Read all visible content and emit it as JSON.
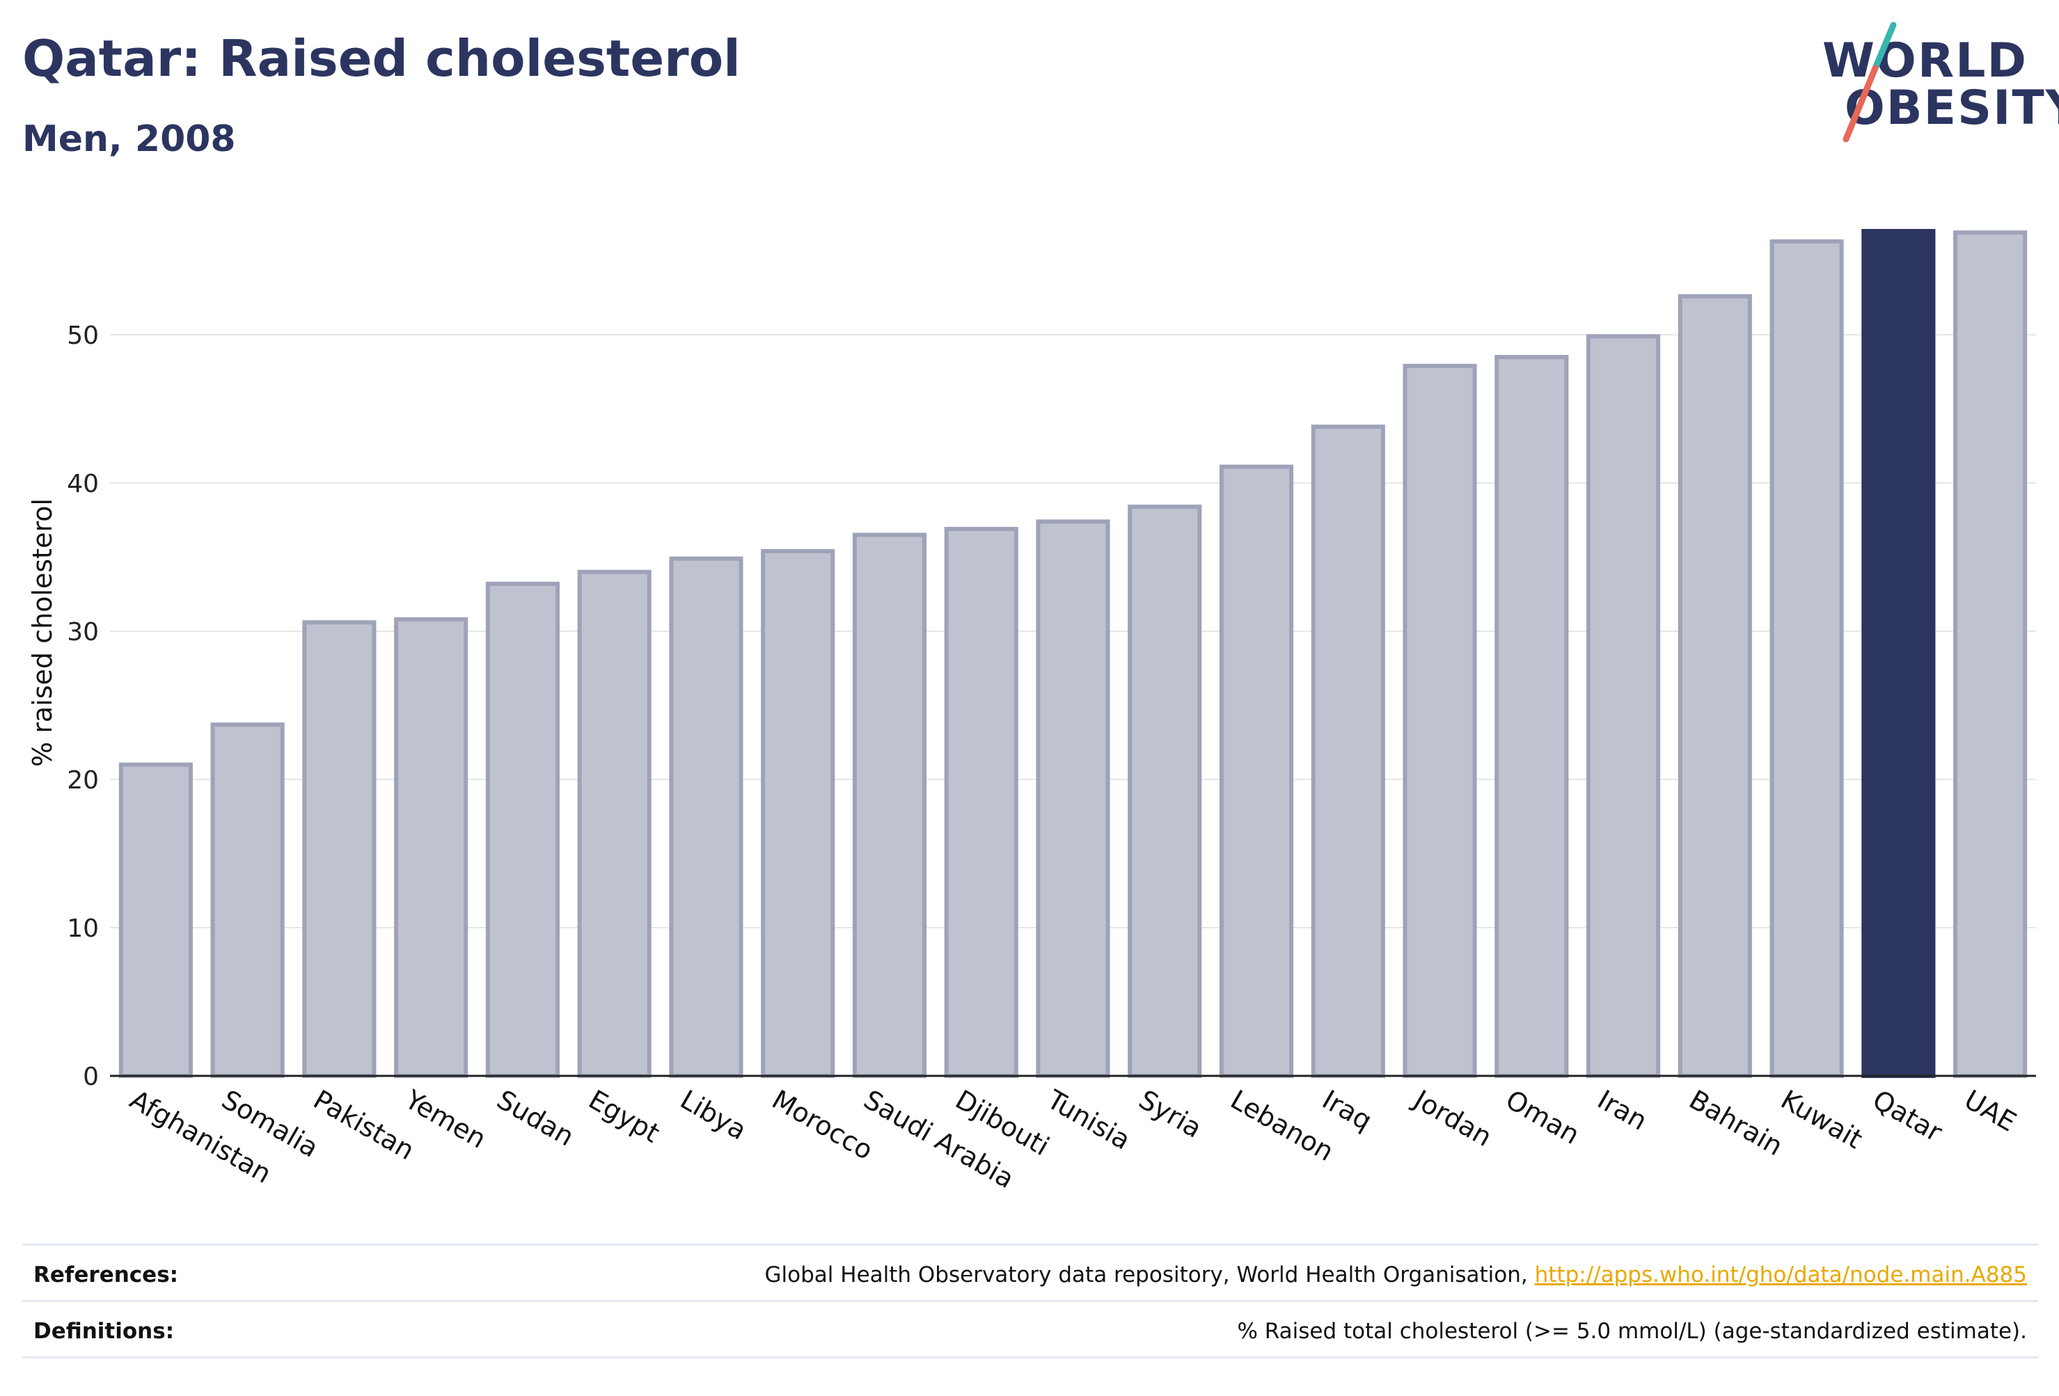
{
  "header": {
    "title": "Qatar: Raised cholesterol",
    "subtitle": "Men, 2008"
  },
  "logo": {
    "line1": "WORLD",
    "line2": "OBESITY",
    "slash_colors": [
      "#3ab5b0",
      "#e8685a"
    ]
  },
  "colors": {
    "highlight_bar": "#2c3560",
    "other_bar_fill": "#bfc3cf",
    "other_bar_stroke": "#9ea3b9",
    "gridline": "#e6e6e6",
    "text": "#2c3560",
    "link": "#e8a800"
  },
  "chart_data": {
    "type": "bar",
    "title": "Qatar: Raised cholesterol",
    "subtitle": "Men, 2008",
    "xlabel": "",
    "ylabel": "% raised cholesterol",
    "ylim": [
      0,
      57
    ],
    "yticks": [
      0,
      10,
      20,
      30,
      40,
      50
    ],
    "grid": true,
    "highlight": "Qatar",
    "categories": [
      "Afghanistan",
      "Somalia",
      "Pakistan",
      "Yemen",
      "Sudan",
      "Egypt",
      "Libya",
      "Morocco",
      "Saudi Arabia",
      "Djibouti",
      "Tunisia",
      "Syria",
      "Lebanon",
      "Iraq",
      "Jordan",
      "Oman",
      "Iran",
      "Bahrain",
      "Kuwait",
      "Qatar",
      "UAE"
    ],
    "values": [
      21.0,
      23.7,
      30.6,
      30.8,
      33.2,
      34.0,
      34.9,
      35.4,
      36.5,
      36.9,
      37.4,
      38.4,
      41.1,
      43.8,
      47.9,
      48.5,
      49.9,
      52.6,
      56.3,
      57.0,
      56.9
    ]
  },
  "footer": {
    "references_label": "References:",
    "references_text": "Global Health Observatory data repository, World Health Organisation, ",
    "references_link": "http://apps.who.int/gho/data/node.main.A885",
    "definitions_label": "Definitions:",
    "definitions_text": "% Raised total cholesterol (>= 5.0 mmol/L) (age-standardized estimate)."
  }
}
